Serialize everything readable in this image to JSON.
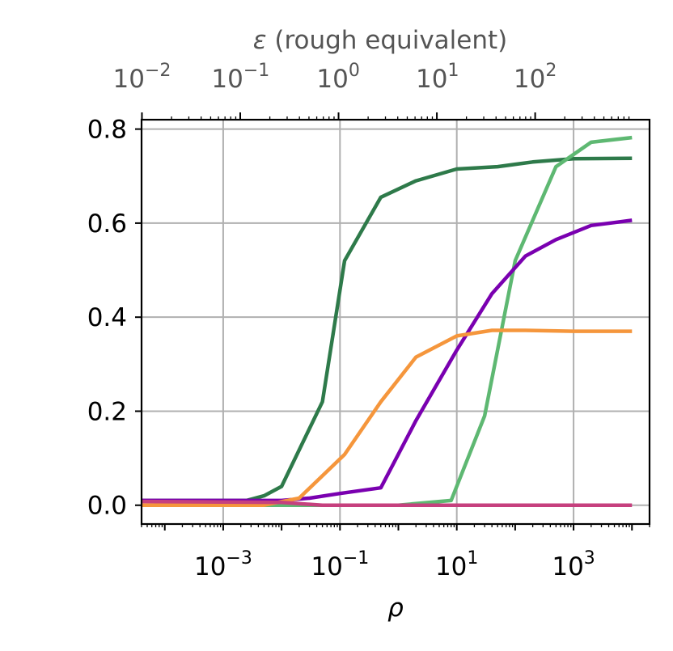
{
  "chart_data": {
    "type": "line",
    "xlabel": "ρ",
    "x_scale": "log",
    "xlim": [
      4e-05,
      20000
    ],
    "ylim": [
      -0.04,
      0.82
    ],
    "grid": true,
    "x_ticks": [
      {
        "base": "10",
        "exp": "−3",
        "value": 0.001
      },
      {
        "base": "10",
        "exp": "−1",
        "value": 0.1
      },
      {
        "base": "10",
        "exp": "1",
        "value": 10
      },
      {
        "base": "10",
        "exp": "3",
        "value": 1000
      }
    ],
    "y_ticks": [
      {
        "label": "0.0",
        "value": 0.0
      },
      {
        "label": "0.2",
        "value": 0.2
      },
      {
        "label": "0.4",
        "value": 0.4
      },
      {
        "label": "0.6",
        "value": 0.6
      },
      {
        "label": "0.8",
        "value": 0.8
      }
    ],
    "secondary_x_axis": {
      "label_symbol": "ε",
      "label_text": " (rough equivalent)",
      "ticks": [
        {
          "base": "10",
          "exp": "−2",
          "rho": 4.06e-05
        },
        {
          "base": "10",
          "exp": "−1",
          "rho": 0.00198
        },
        {
          "base": "10",
          "exp": "0",
          "rho": 0.0933
        },
        {
          "base": "10",
          "exp": "1",
          "rho": 4.66
        },
        {
          "base": "10",
          "exp": "2",
          "rho": 220
        }
      ]
    },
    "series": [
      {
        "color": "#2e7a4a",
        "x": [
          4e-05,
          0.0025,
          0.005,
          0.01,
          0.05,
          0.12,
          0.5,
          2,
          10,
          50,
          200,
          1000,
          10000
        ],
        "y": [
          0.01,
          0.01,
          0.02,
          0.04,
          0.22,
          0.52,
          0.655,
          0.69,
          0.715,
          0.72,
          0.73,
          0.737,
          0.738
        ]
      },
      {
        "color": "#5eb872",
        "x": [
          4e-05,
          1,
          8,
          30,
          100,
          500,
          2000,
          10000
        ],
        "y": [
          0.0,
          0.0,
          0.01,
          0.19,
          0.52,
          0.72,
          0.772,
          0.782
        ]
      },
      {
        "color": "#7a00b0",
        "x": [
          4e-05,
          0.01,
          0.03,
          0.1,
          0.5,
          2,
          10,
          40,
          150,
          500,
          2000,
          10000
        ],
        "y": [
          0.01,
          0.01,
          0.015,
          0.025,
          0.037,
          0.18,
          0.33,
          0.45,
          0.53,
          0.565,
          0.595,
          0.606
        ]
      },
      {
        "color": "#f5963c",
        "x": [
          4e-05,
          0.005,
          0.02,
          0.12,
          0.5,
          2,
          10,
          40,
          150,
          1000,
          10000
        ],
        "y": [
          0.0,
          0.0,
          0.015,
          0.108,
          0.22,
          0.315,
          0.36,
          0.372,
          0.372,
          0.37,
          0.37
        ]
      },
      {
        "color": "#c6407e",
        "x": [
          4e-05,
          0.01,
          0.05,
          10000
        ],
        "y": [
          0.008,
          0.006,
          0.0,
          0.0
        ]
      }
    ]
  }
}
